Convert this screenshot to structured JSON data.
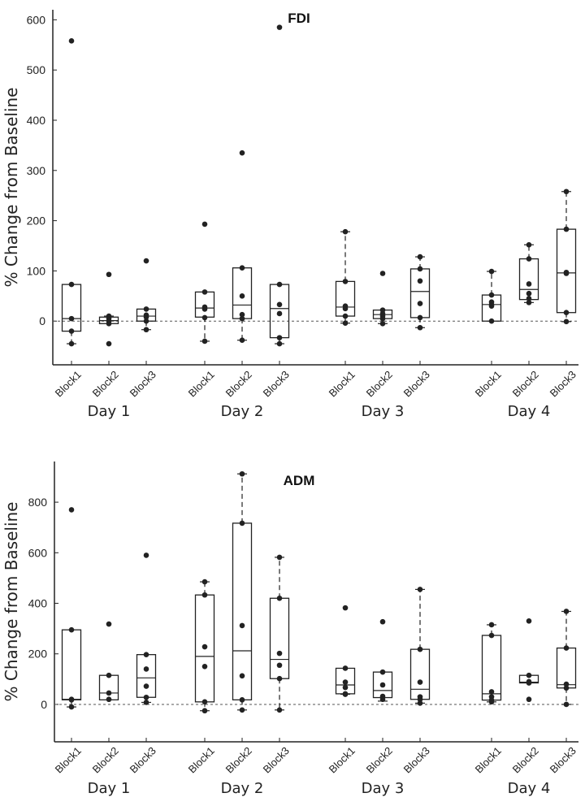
{
  "chart_data": [
    {
      "type": "box",
      "title": "FDI",
      "ylabel": "% Change from Baseline",
      "ylim": [
        -87,
        620
      ],
      "yticks": [
        0,
        100,
        200,
        300,
        400,
        500,
        600
      ],
      "reference_line": 0,
      "groups": [
        "Day 1",
        "Day 2",
        "Day 3",
        "Day 4"
      ],
      "categories": [
        "Block1",
        "Block2",
        "Block3"
      ],
      "boxes": [
        {
          "group": "Day 1",
          "category": "Block1",
          "q1": -20,
          "median": 5,
          "q3": 73,
          "whisker_low": -45,
          "whisker_high": 73,
          "points": [
            558,
            73,
            5,
            -20,
            -45
          ]
        },
        {
          "group": "Day 1",
          "category": "Block2",
          "q1": -5,
          "median": 1,
          "q3": 8,
          "whisker_low": -5,
          "whisker_high": 10,
          "points": [
            93,
            10,
            5,
            0,
            -5,
            -45
          ]
        },
        {
          "group": "Day 1",
          "category": "Block3",
          "q1": 0,
          "median": 10,
          "q3": 24,
          "whisker_low": -17,
          "whisker_high": 24,
          "points": [
            120,
            24,
            12,
            8,
            0,
            -17
          ]
        },
        {
          "group": "Day 2",
          "category": "Block1",
          "q1": 8,
          "median": 26,
          "q3": 58,
          "whisker_low": -40,
          "whisker_high": 58,
          "points": [
            193,
            58,
            28,
            24,
            7,
            -40
          ]
        },
        {
          "group": "Day 2",
          "category": "Block2",
          "q1": 5,
          "median": 32,
          "q3": 106,
          "whisker_low": -38,
          "whisker_high": 106,
          "points": [
            335,
            106,
            50,
            13,
            5,
            -38
          ]
        },
        {
          "group": "Day 2",
          "category": "Block3",
          "q1": -33,
          "median": 25,
          "q3": 73,
          "whisker_low": -45,
          "whisker_high": 73,
          "points": [
            585,
            73,
            33,
            15,
            -33,
            -45
          ]
        },
        {
          "group": "Day 3",
          "category": "Block1",
          "q1": 10,
          "median": 28,
          "q3": 79,
          "whisker_low": -4,
          "whisker_high": 178,
          "points": [
            178,
            79,
            30,
            25,
            10,
            -4
          ]
        },
        {
          "group": "Day 3",
          "category": "Block2",
          "q1": 5,
          "median": 13,
          "q3": 22,
          "whisker_low": -5,
          "whisker_high": 22,
          "points": [
            95,
            22,
            15,
            10,
            5,
            -5
          ]
        },
        {
          "group": "Day 3",
          "category": "Block3",
          "q1": 7,
          "median": 59,
          "q3": 104,
          "whisker_low": -13,
          "whisker_high": 128,
          "points": [
            128,
            104,
            80,
            35,
            7,
            -13
          ]
        },
        {
          "group": "Day 4",
          "category": "Block1",
          "q1": 0,
          "median": 33,
          "q3": 52,
          "whisker_low": 0,
          "whisker_high": 99,
          "points": [
            99,
            52,
            38,
            33,
            30,
            0
          ]
        },
        {
          "group": "Day 4",
          "category": "Block2",
          "q1": 43,
          "median": 63,
          "q3": 124,
          "whisker_low": 37,
          "whisker_high": 152,
          "points": [
            152,
            124,
            74,
            55,
            45,
            37
          ]
        },
        {
          "group": "Day 4",
          "category": "Block3",
          "q1": 17,
          "median": 96,
          "q3": 183,
          "whisker_low": -1,
          "whisker_high": 258,
          "points": [
            258,
            183,
            97,
            95,
            17,
            -1
          ]
        }
      ]
    },
    {
      "type": "box",
      "title": "ADM",
      "ylabel": "% Change from Baseline",
      "ylim": [
        -148,
        961
      ],
      "yticks": [
        0,
        200,
        400,
        600,
        800
      ],
      "reference_line": 0,
      "groups": [
        "Day 1",
        "Day 2",
        "Day 3",
        "Day 4"
      ],
      "categories": [
        "Block1",
        "Block2",
        "Block3"
      ],
      "boxes": [
        {
          "group": "Day 1",
          "category": "Block1",
          "q1": 18,
          "median": 20,
          "q3": 295,
          "whisker_low": -10,
          "whisker_high": 295,
          "points": [
            770,
            295,
            20,
            18,
            -10
          ]
        },
        {
          "group": "Day 1",
          "category": "Block2",
          "q1": 18,
          "median": 45,
          "q3": 115,
          "whisker_low": 18,
          "whisker_high": 115,
          "points": [
            318,
            115,
            45,
            20
          ]
        },
        {
          "group": "Day 1",
          "category": "Block3",
          "q1": 28,
          "median": 105,
          "q3": 197,
          "whisker_low": 8,
          "whisker_high": 197,
          "points": [
            590,
            197,
            140,
            72,
            28,
            8
          ]
        },
        {
          "group": "Day 2",
          "category": "Block1",
          "q1": 10,
          "median": 190,
          "q3": 433,
          "whisker_low": -25,
          "whisker_high": 485,
          "points": [
            485,
            433,
            228,
            150,
            10,
            -25
          ]
        },
        {
          "group": "Day 2",
          "category": "Block2",
          "q1": 18,
          "median": 212,
          "q3": 717,
          "whisker_low": -22,
          "whisker_high": 912,
          "points": [
            912,
            717,
            312,
            113,
            18,
            -22
          ]
        },
        {
          "group": "Day 2",
          "category": "Block3",
          "q1": 102,
          "median": 178,
          "q3": 420,
          "whisker_low": -22,
          "whisker_high": 582,
          "points": [
            582,
            420,
            202,
            155,
            102,
            -22
          ]
        },
        {
          "group": "Day 3",
          "category": "Block1",
          "q1": 42,
          "median": 77,
          "q3": 143,
          "whisker_low": 40,
          "whisker_high": 143,
          "points": [
            382,
            143,
            88,
            67,
            42,
            40
          ]
        },
        {
          "group": "Day 3",
          "category": "Block2",
          "q1": 27,
          "median": 55,
          "q3": 128,
          "whisker_low": 13,
          "whisker_high": 128,
          "points": [
            327,
            128,
            77,
            32,
            20
          ]
        },
        {
          "group": "Day 3",
          "category": "Block3",
          "q1": 20,
          "median": 60,
          "q3": 218,
          "whisker_low": 5,
          "whisker_high": 455,
          "points": [
            455,
            218,
            88,
            30,
            20,
            5
          ]
        },
        {
          "group": "Day 4",
          "category": "Block1",
          "q1": 17,
          "median": 42,
          "q3": 273,
          "whisker_low": 10,
          "whisker_high": 315,
          "points": [
            315,
            273,
            50,
            30,
            17,
            10
          ]
        },
        {
          "group": "Day 4",
          "category": "Block2",
          "q1": 85,
          "median": 88,
          "q3": 115,
          "whisker_low": 85,
          "whisker_high": 115,
          "points": [
            330,
            115,
            90,
            85,
            20
          ]
        },
        {
          "group": "Day 4",
          "category": "Block3",
          "q1": 65,
          "median": 78,
          "q3": 223,
          "whisker_low": 0,
          "whisker_high": 368,
          "points": [
            368,
            223,
            80,
            65,
            0
          ]
        }
      ]
    }
  ]
}
